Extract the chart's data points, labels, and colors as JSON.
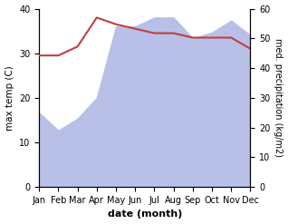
{
  "months": [
    "Jan",
    "Feb",
    "Mar",
    "Apr",
    "May",
    "Jun",
    "Jul",
    "Aug",
    "Sep",
    "Oct",
    "Nov",
    "Dec"
  ],
  "temp_data": [
    29.5,
    29.5,
    31.5,
    38.0,
    36.5,
    35.5,
    34.5,
    34.5,
    33.5,
    33.5,
    33.5,
    31.0
  ],
  "precip_data": [
    25,
    19,
    23,
    30,
    54,
    54,
    57,
    57,
    50,
    52,
    56,
    51
  ],
  "temp_color": "#c04040",
  "precip_fill_color": "#b8c0e8",
  "temp_ylim": [
    0,
    40
  ],
  "precip_ylim": [
    0,
    60
  ],
  "temp_yticks": [
    0,
    10,
    20,
    30,
    40
  ],
  "precip_yticks": [
    0,
    10,
    20,
    30,
    40,
    50,
    60
  ],
  "xlabel": "date (month)",
  "ylabel_left": "max temp (C)",
  "ylabel_right": "med. precipitation (kg/m2)",
  "background_color": "#ffffff",
  "figsize": [
    3.18,
    2.47
  ],
  "dpi": 100
}
